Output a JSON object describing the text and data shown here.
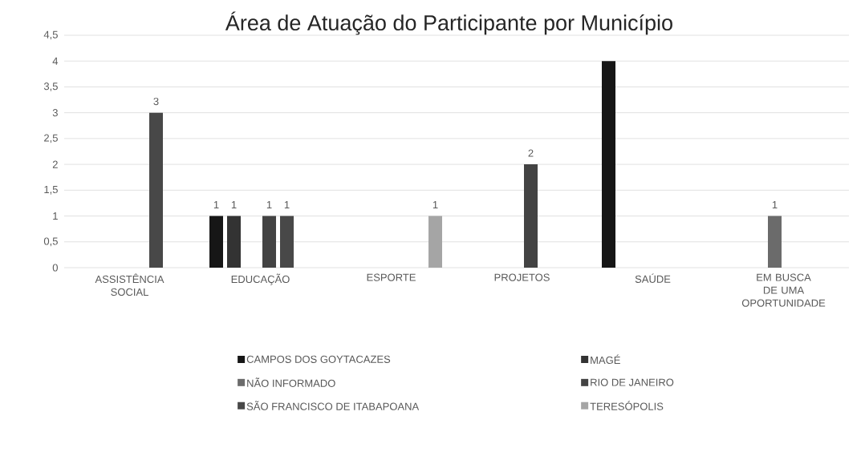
{
  "chart_data": {
    "type": "bar",
    "title": "Área de Atuação do Participante por Município",
    "categories": [
      "ASSISTÊNCIA SOCIAL",
      "EDUCAÇÃO",
      "ESPORTE",
      "PROJETOS",
      "SAÚDE",
      "EM BUSCA DE UMA OPORTUNIDADE"
    ],
    "series": [
      {
        "name": "CAMPOS DOS GOYTACAZES",
        "color": "#161616",
        "values": [
          null,
          1,
          null,
          null,
          4,
          null
        ],
        "value_labels": [
          null,
          "1",
          null,
          null,
          null,
          null
        ]
      },
      {
        "name": "MAGÉ",
        "color": "#333333",
        "values": [
          null,
          1,
          null,
          null,
          null,
          null
        ],
        "value_labels": [
          null,
          "1",
          null,
          null,
          null,
          null
        ]
      },
      {
        "name": "NÃO INFORMADO",
        "color": "#6b6b6b",
        "values": [
          null,
          null,
          null,
          null,
          null,
          1
        ],
        "value_labels": [
          null,
          null,
          null,
          null,
          null,
          "1"
        ]
      },
      {
        "name": "RIO DE JANEIRO",
        "color": "#434343",
        "values": [
          null,
          1,
          null,
          2,
          null,
          null
        ],
        "value_labels": [
          null,
          "1",
          null,
          "2",
          null,
          null
        ]
      },
      {
        "name": "SÃO FRANCISCO DE ITABAPOANA",
        "color": "#484848",
        "values": [
          3,
          1,
          null,
          null,
          null,
          null
        ],
        "value_labels": [
          "3",
          "1",
          null,
          null,
          null,
          null
        ]
      },
      {
        "name": "TERESÓPOLIS",
        "color": "#a5a5a5",
        "values": [
          null,
          null,
          1,
          null,
          null,
          null
        ],
        "value_labels": [
          null,
          null,
          "1",
          null,
          null,
          null
        ]
      }
    ],
    "ylim": [
      0,
      4.5
    ],
    "yticks": [
      0,
      {
        "value": 0.5,
        "label": "0,5"
      },
      1,
      {
        "value": 1.5,
        "label": "1,5"
      },
      2,
      {
        "value": 2.5,
        "label": "2,5"
      },
      3,
      {
        "value": 3.5,
        "label": "3,5"
      },
      4,
      {
        "value": 4.5,
        "label": "4,5"
      }
    ],
    "grid": "y",
    "legend": "bottom"
  }
}
